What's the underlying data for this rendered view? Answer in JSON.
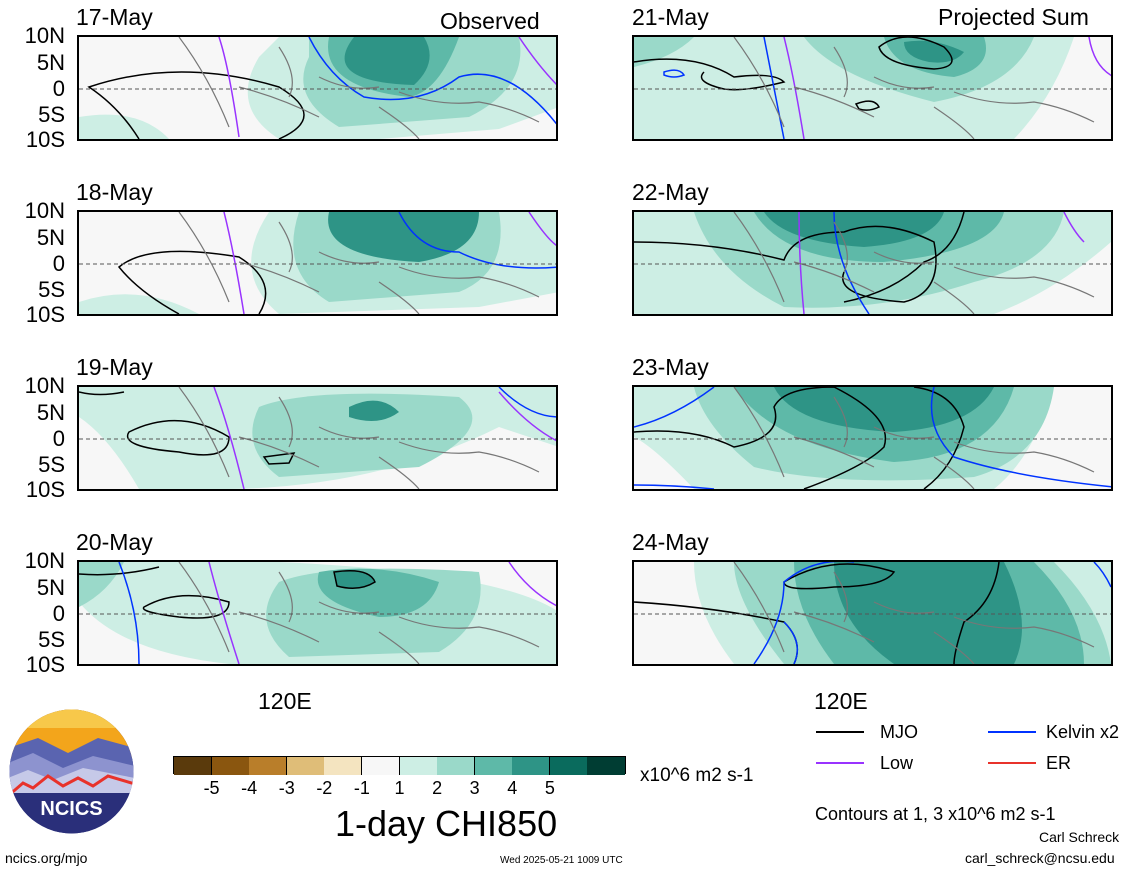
{
  "panels": [
    {
      "date": "17-May",
      "label": "Observed"
    },
    {
      "date": "18-May",
      "label": ""
    },
    {
      "date": "19-May",
      "label": ""
    },
    {
      "date": "20-May",
      "label": ""
    },
    {
      "date": "21-May",
      "label": "Projected Sum"
    },
    {
      "date": "22-May",
      "label": ""
    },
    {
      "date": "23-May",
      "label": ""
    },
    {
      "date": "24-May",
      "label": ""
    }
  ],
  "lat_labels": [
    "10N",
    "5N",
    "0",
    "5S",
    "10S"
  ],
  "lon_label": "120E",
  "colorbar": {
    "ticks": [
      "-5",
      "-4",
      "-3",
      "-2",
      "-1",
      "1",
      "2",
      "3",
      "4",
      "5"
    ],
    "units": "x10^6 m2 s-1",
    "colors": [
      "#5a3a0c",
      "#8a560f",
      "#b97e2a",
      "#dfbd78",
      "#f4e4c0",
      "#f7f7f7",
      "#cdeee4",
      "#9ad9c9",
      "#5eb9a8",
      "#2e9486",
      "#0a6b5d",
      "#003d33"
    ]
  },
  "title": "1-day CHI850",
  "legend": {
    "mjo": "MJO",
    "low": "Low",
    "kelvin": "Kelvin x2",
    "er": "ER",
    "colors": {
      "mjo": "#000000",
      "low": "#9933ff",
      "kelvin": "#0033ff",
      "er": "#e8322b"
    }
  },
  "contours_note": "Contours at 1, 3 x10^6 m2 s-1",
  "author": "Carl Schreck",
  "email": "carl_schreck@ncsu.edu",
  "site": "ncics.org/mjo",
  "timestamp": "Wed 2025-05-21 1009 UTC",
  "logo_text": "NCICS"
}
